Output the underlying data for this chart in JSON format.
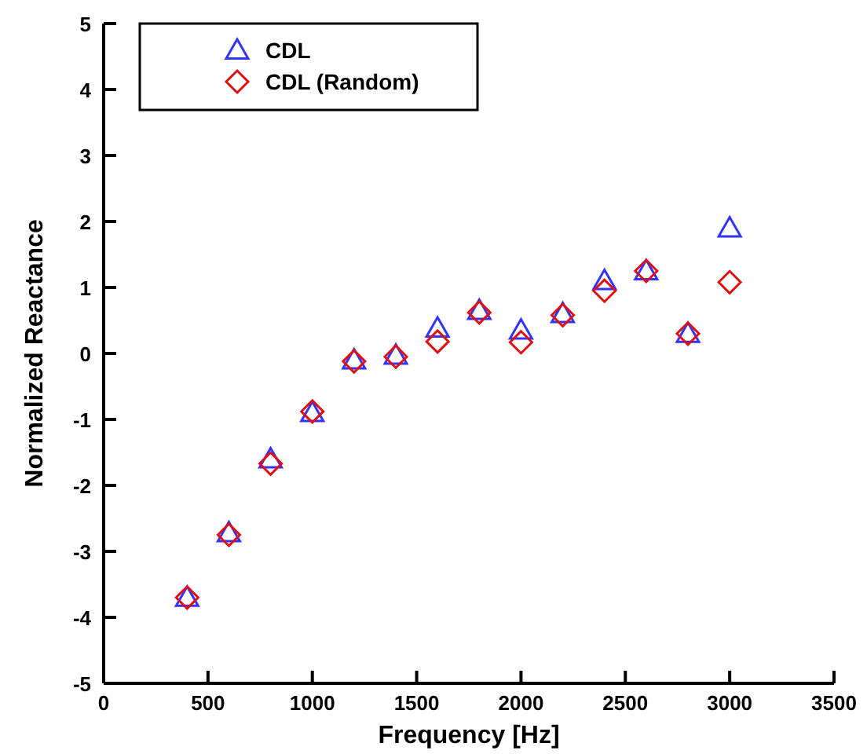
{
  "chart_data": {
    "type": "scatter",
    "xlabel": "Frequency [Hz]",
    "ylabel": "Normalized Reactance",
    "x": [
      400,
      600,
      800,
      1000,
      1200,
      1400,
      1600,
      1800,
      2000,
      2200,
      2400,
      2600,
      2800,
      3000
    ],
    "series": [
      {
        "name": "CDL",
        "color": "#3333ff",
        "marker": "triangle",
        "values": [
          -3.7,
          -2.72,
          -1.6,
          -0.9,
          -0.1,
          -0.03,
          0.38,
          0.65,
          0.35,
          0.6,
          1.1,
          1.25,
          0.3,
          1.9
        ]
      },
      {
        "name": "CDL (Random)",
        "color": "#dd1111",
        "marker": "diamond",
        "values": [
          -3.7,
          -2.75,
          -1.67,
          -0.88,
          -0.12,
          -0.05,
          0.18,
          0.62,
          0.17,
          0.58,
          0.95,
          1.25,
          0.3,
          1.08
        ]
      }
    ],
    "xlim": [
      0,
      3500
    ],
    "xticks": [
      0,
      500,
      1000,
      1500,
      2000,
      2500,
      3000,
      3500
    ],
    "ylim": [
      -5,
      5
    ],
    "yticks": [
      -5,
      -4,
      -3,
      -2,
      -1,
      0,
      1,
      2,
      3,
      4,
      5
    ],
    "legend": "top left",
    "grid": false
  }
}
